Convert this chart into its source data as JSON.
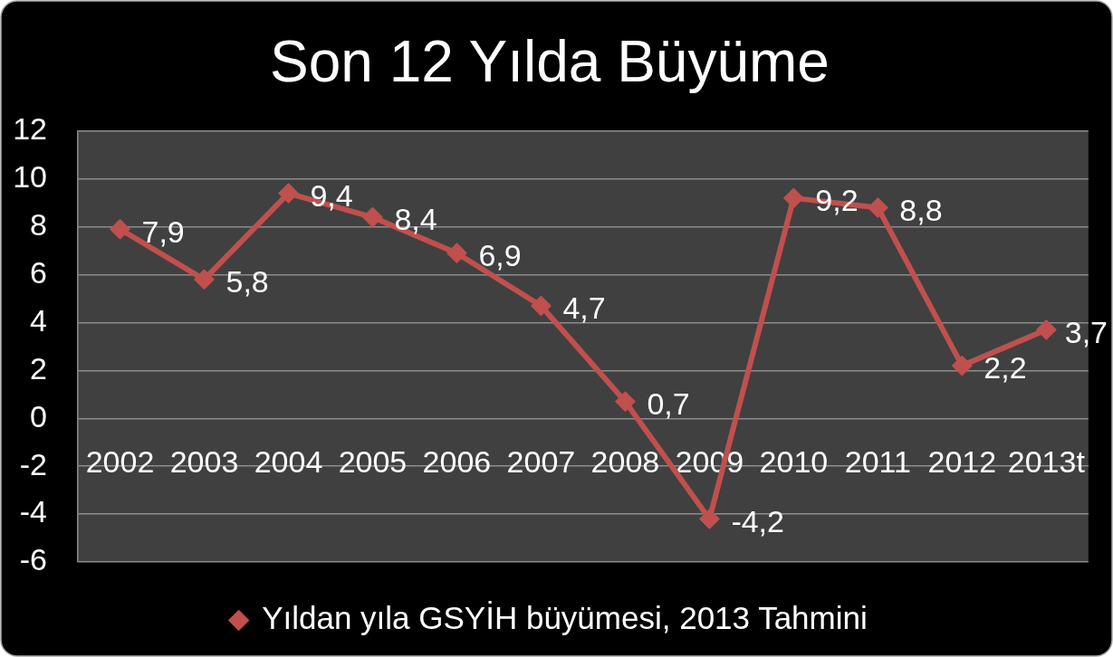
{
  "chart_data": {
    "type": "line",
    "title": "Son 12 Yılda Büyüme",
    "categories": [
      "2002",
      "2003",
      "2004",
      "2005",
      "2006",
      "2007",
      "2008",
      "2009",
      "2010",
      "2011",
      "2012",
      "2013t"
    ],
    "series": [
      {
        "name": "Yıldan yıla GSYİH büyümesi, 2013 Tahmini",
        "color": "#c0504d",
        "values": [
          7.9,
          5.8,
          9.4,
          8.4,
          6.9,
          4.7,
          0.7,
          -4.2,
          9.2,
          8.8,
          2.2,
          3.7
        ],
        "value_labels": [
          "7,9",
          "5,8",
          "9,4",
          "8,4",
          "6,9",
          "4,7",
          "0,7",
          "-4,2",
          "9,2",
          "8,8",
          "2,2",
          "3,7"
        ]
      }
    ],
    "ylim": [
      -6,
      12
    ],
    "yticks": [
      -6,
      -4,
      -2,
      0,
      2,
      4,
      6,
      8,
      10,
      12
    ],
    "grid": "y",
    "legend": "bottom",
    "marker": "diamond",
    "line_style": "solid"
  }
}
